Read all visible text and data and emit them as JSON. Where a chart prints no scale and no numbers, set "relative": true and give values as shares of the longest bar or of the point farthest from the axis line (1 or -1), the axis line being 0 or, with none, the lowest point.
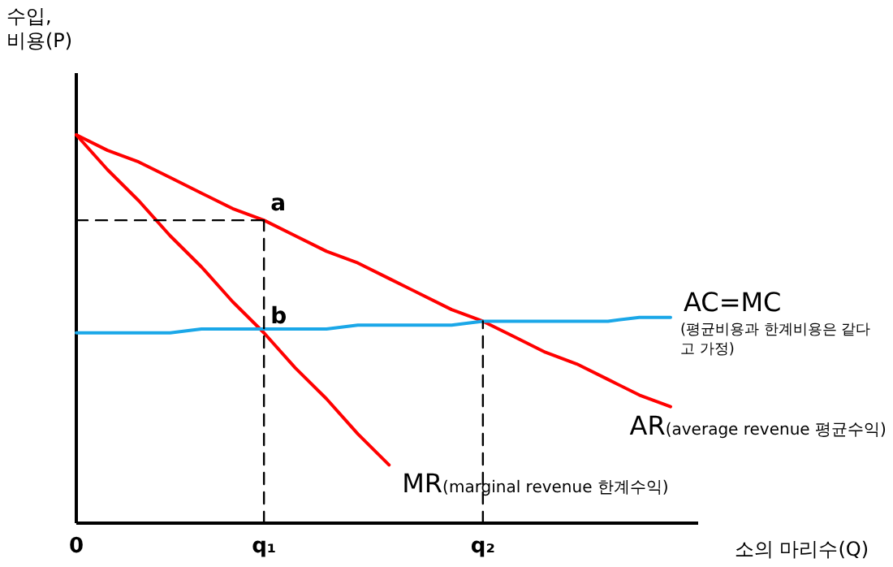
{
  "chart_data": {
    "type": "line",
    "relative": true,
    "xlabel": "소의 마리수(Q)",
    "ylabel": "수입, 비용(P)",
    "tick_labels": "x",
    "categories": [
      "0",
      null,
      null,
      null,
      null,
      null,
      "q₁",
      null,
      null,
      null,
      null,
      null,
      null,
      "q₂",
      null,
      null,
      null,
      null,
      null,
      null
    ],
    "series": [
      {
        "name": "AR(average revenue 평균수익)",
        "color": "#ff0000",
        "values": [
          1,
          0.96,
          0.93,
          0.89,
          0.85,
          0.81,
          0.78,
          0.74,
          0.7,
          0.67,
          0.63,
          0.59,
          0.55,
          0.52,
          0.48,
          0.44,
          0.41,
          0.37,
          0.33,
          0.3
        ]
      },
      {
        "name": "MR(marginal revenue 한계수익)",
        "color": "#ff0000",
        "values": [
          1,
          0.91,
          0.83,
          0.74,
          0.66,
          0.57,
          0.49,
          0.4,
          0.32,
          0.23,
          0.15,
          null,
          null,
          null,
          null,
          null,
          null,
          null,
          null,
          null
        ]
      },
      {
        "name": "AC=MC",
        "color": "#1aa7e8",
        "values": [
          0.49,
          0.49,
          0.49,
          0.49,
          0.5,
          0.5,
          0.5,
          0.5,
          0.5,
          0.51,
          0.51,
          0.51,
          0.51,
          0.52,
          0.52,
          0.52,
          0.52,
          0.52,
          0.53,
          0.53
        ]
      },
      {
        "color": "#000000",
        "line_style": "dashed",
        "x": [
          "q₁",
          "q₁"
        ],
        "values": [
          0,
          0.78
        ]
      },
      {
        "color": "#000000",
        "line_style": "dashed",
        "x": [
          "0",
          "q₁"
        ],
        "values": [
          0.78,
          0.78
        ]
      },
      {
        "color": "#000000",
        "line_style": "dashed",
        "x": [
          "q₂",
          "q₂"
        ],
        "values": [
          0,
          0.52
        ]
      }
    ],
    "annotations": [
      {
        "text": "a",
        "x": "q₁",
        "y": 0.78
      },
      {
        "text": "b",
        "x": "q₁",
        "y": 0.49
      },
      "(평균비용과 한계비용은 같다고 가정)"
    ]
  }
}
